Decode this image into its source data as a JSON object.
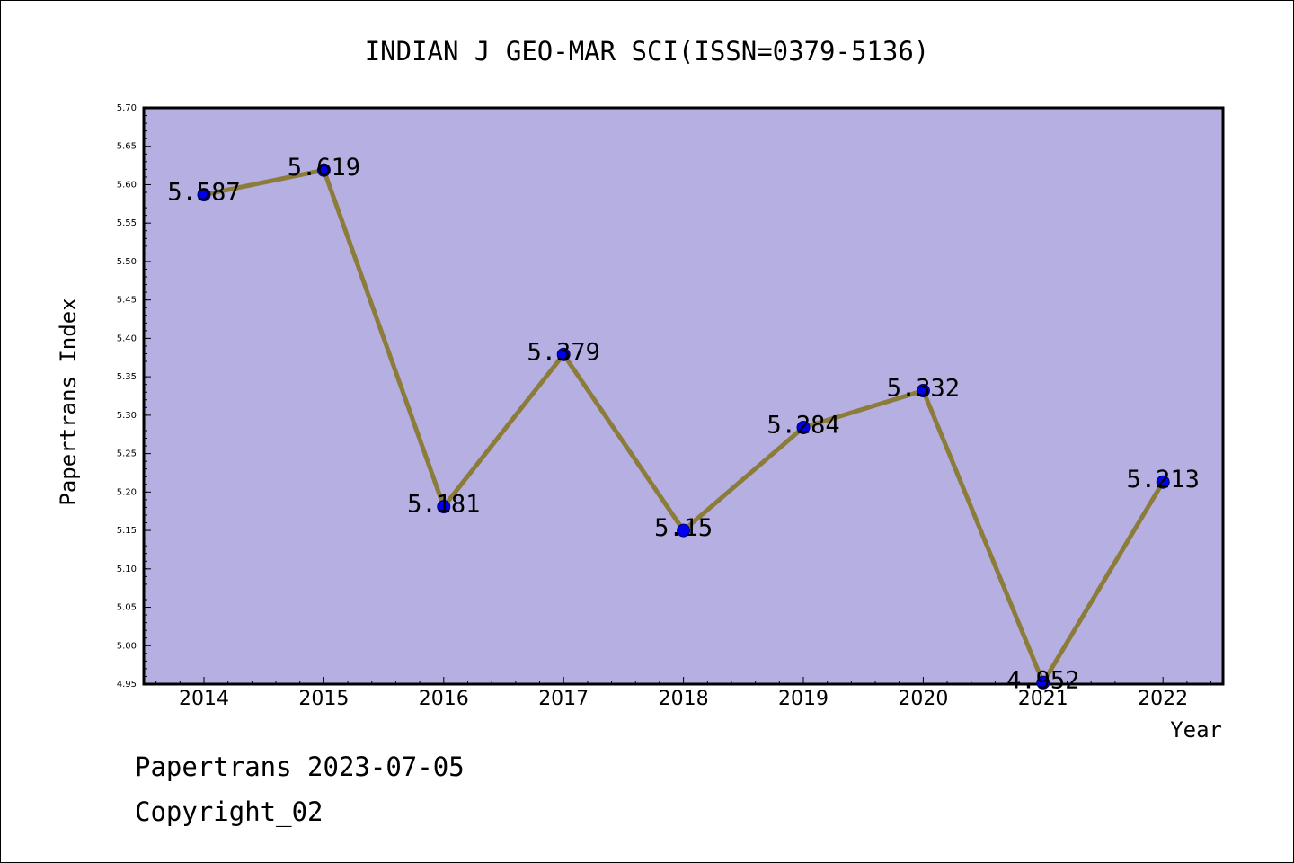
{
  "chart_data": {
    "type": "line",
    "title": "INDIAN J GEO-MAR SCI(ISSN=0379-5136)",
    "xlabel": "Year",
    "ylabel": "Papertrans Index",
    "categories": [
      "2014",
      "2015",
      "2016",
      "2017",
      "2018",
      "2019",
      "2020",
      "2021",
      "2022"
    ],
    "values": [
      5.587,
      5.619,
      5.181,
      5.379,
      5.15,
      5.284,
      5.332,
      4.952,
      5.213
    ],
    "data_labels": [
      "5.587",
      "5.619",
      "5.181",
      "5.379",
      "5.15",
      "5.284",
      "5.332",
      "4.952",
      "5.213"
    ],
    "ylim": [
      4.95,
      5.7
    ],
    "yticks": [
      "5.70",
      "5.65",
      "5.60",
      "5.55",
      "5.50",
      "5.45",
      "5.40",
      "5.35",
      "5.30",
      "5.25",
      "5.20",
      "5.15",
      "5.10",
      "5.05",
      "5.00",
      "4.95"
    ],
    "grid": false,
    "legend": "none",
    "colors": {
      "plot_background": "#b5afe2",
      "line": "#8b7c3a",
      "marker": "#0000ee"
    }
  },
  "footer": {
    "line1": "Papertrans 2023-07-05",
    "line2": "Copyright_02"
  }
}
